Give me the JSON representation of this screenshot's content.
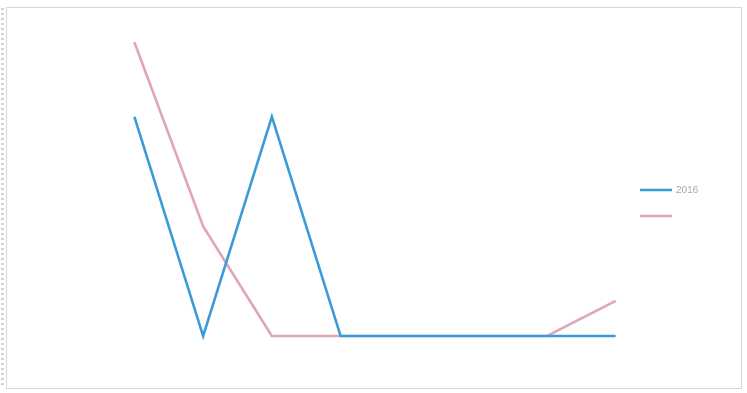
{
  "chart_data": {
    "type": "line",
    "categories": [
      "",
      "",
      "",
      "",
      "",
      "",
      "",
      ""
    ],
    "series": [
      {
        "name": "2016",
        "color": "#3b9bd6",
        "values": [
          50,
          0,
          50,
          0,
          0,
          0,
          0,
          0
        ]
      },
      {
        "name": "",
        "color": "#e0a5b6",
        "values": [
          67,
          25,
          0,
          0,
          0,
          0,
          0,
          8
        ]
      }
    ],
    "ylim": [
      0,
      70
    ],
    "yticks": [
      "",
      "",
      "",
      "",
      "",
      "",
      "",
      ""
    ],
    "legend_position": "right",
    "grid": false
  }
}
